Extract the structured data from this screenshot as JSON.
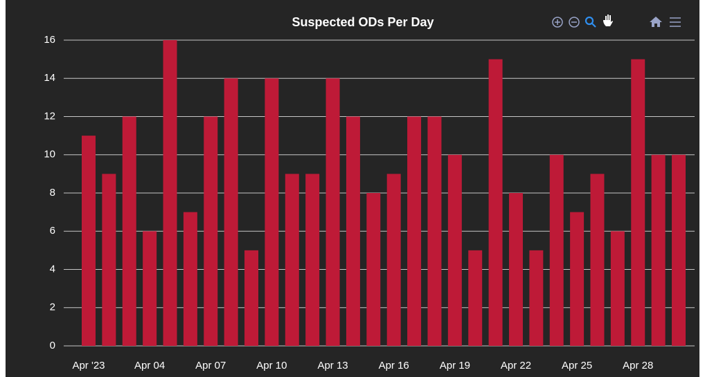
{
  "chart_data": {
    "type": "bar",
    "title": "Suspected ODs Per Day",
    "categories": [
      "Apr '23",
      null,
      null,
      "Apr 04",
      null,
      null,
      "Apr 07",
      null,
      null,
      "Apr 10",
      null,
      null,
      "Apr 13",
      null,
      null,
      "Apr 16",
      null,
      null,
      "Apr 19",
      null,
      null,
      "Apr 22",
      null,
      null,
      "Apr 25",
      null,
      null,
      "Apr 28",
      null,
      null
    ],
    "values": [
      11,
      9,
      12,
      6,
      16,
      7,
      12,
      14,
      5,
      14,
      9,
      9,
      14,
      12,
      8,
      9,
      12,
      12,
      10,
      5,
      15,
      8,
      5,
      10,
      7,
      9,
      6,
      15,
      10,
      10
    ],
    "color": "#be1a37",
    "ylim": [
      0,
      16
    ],
    "yticks": [
      0,
      2,
      4,
      6,
      8,
      10,
      12,
      14,
      16
    ],
    "grid": true
  }
}
